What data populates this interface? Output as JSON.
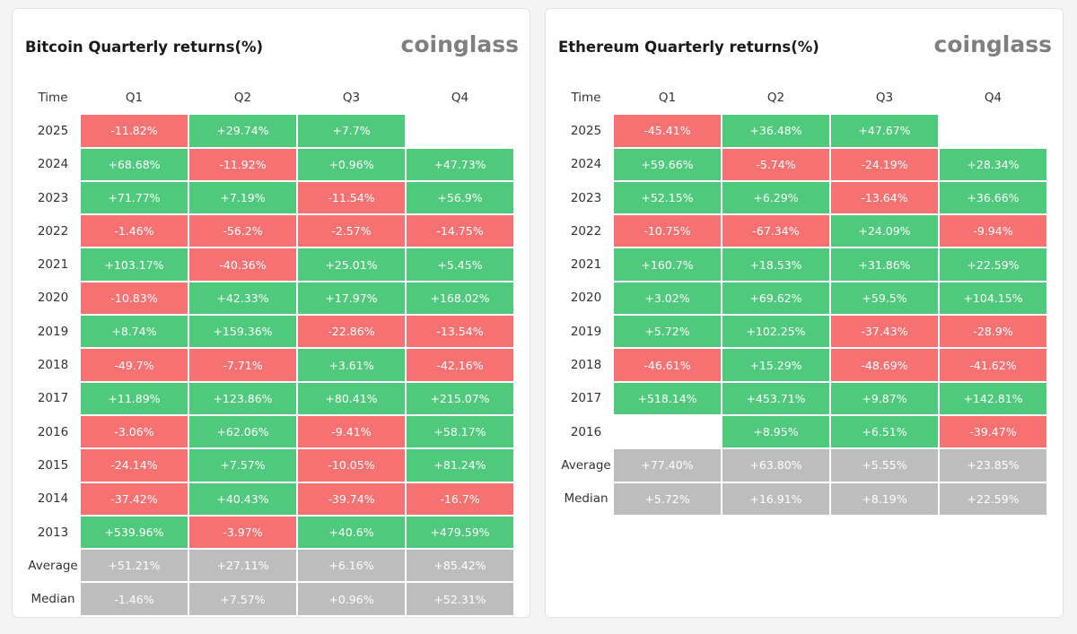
{
  "colors": {
    "positive": "#4fc97c",
    "negative": "#f67172",
    "stat": "#bdbdbd"
  },
  "chart_data": [
    {
      "type": "table",
      "title": "Bitcoin Quarterly returns(%)",
      "brand": "coinglass",
      "headers": [
        "Time",
        "Q1",
        "Q2",
        "Q3",
        "Q4"
      ],
      "rows": [
        {
          "label": "2025",
          "values": [
            "-11.82%",
            "+29.74%",
            "+7.7%",
            ""
          ]
        },
        {
          "label": "2024",
          "values": [
            "+68.68%",
            "-11.92%",
            "+0.96%",
            "+47.73%"
          ]
        },
        {
          "label": "2023",
          "values": [
            "+71.77%",
            "+7.19%",
            "-11.54%",
            "+56.9%"
          ]
        },
        {
          "label": "2022",
          "values": [
            "-1.46%",
            "-56.2%",
            "-2.57%",
            "-14.75%"
          ]
        },
        {
          "label": "2021",
          "values": [
            "+103.17%",
            "-40.36%",
            "+25.01%",
            "+5.45%"
          ]
        },
        {
          "label": "2020",
          "values": [
            "-10.83%",
            "+42.33%",
            "+17.97%",
            "+168.02%"
          ]
        },
        {
          "label": "2019",
          "values": [
            "+8.74%",
            "+159.36%",
            "-22.86%",
            "-13.54%"
          ]
        },
        {
          "label": "2018",
          "values": [
            "-49.7%",
            "-7.71%",
            "+3.61%",
            "-42.16%"
          ]
        },
        {
          "label": "2017",
          "values": [
            "+11.89%",
            "+123.86%",
            "+80.41%",
            "+215.07%"
          ]
        },
        {
          "label": "2016",
          "values": [
            "-3.06%",
            "+62.06%",
            "-9.41%",
            "+58.17%"
          ]
        },
        {
          "label": "2015",
          "values": [
            "-24.14%",
            "+7.57%",
            "-10.05%",
            "+81.24%"
          ]
        },
        {
          "label": "2014",
          "values": [
            "-37.42%",
            "+40.43%",
            "-39.74%",
            "-16.7%"
          ]
        },
        {
          "label": "2013",
          "values": [
            "+539.96%",
            "-3.97%",
            "+40.6%",
            "+479.59%"
          ]
        }
      ],
      "stats": [
        {
          "label": "Average",
          "values": [
            "+51.21%",
            "+27.11%",
            "+6.16%",
            "+85.42%"
          ]
        },
        {
          "label": "Median",
          "values": [
            "-1.46%",
            "+7.57%",
            "+0.96%",
            "+52.31%"
          ]
        }
      ]
    },
    {
      "type": "table",
      "title": "Ethereum Quarterly returns(%)",
      "brand": "coinglass",
      "headers": [
        "Time",
        "Q1",
        "Q2",
        "Q3",
        "Q4"
      ],
      "rows": [
        {
          "label": "2025",
          "values": [
            "-45.41%",
            "+36.48%",
            "+47.67%",
            ""
          ]
        },
        {
          "label": "2024",
          "values": [
            "+59.66%",
            "-5.74%",
            "-24.19%",
            "+28.34%"
          ]
        },
        {
          "label": "2023",
          "values": [
            "+52.15%",
            "+6.29%",
            "-13.64%",
            "+36.66%"
          ]
        },
        {
          "label": "2022",
          "values": [
            "-10.75%",
            "-67.34%",
            "+24.09%",
            "-9.94%"
          ]
        },
        {
          "label": "2021",
          "values": [
            "+160.7%",
            "+18.53%",
            "+31.86%",
            "+22.59%"
          ]
        },
        {
          "label": "2020",
          "values": [
            "+3.02%",
            "+69.62%",
            "+59.5%",
            "+104.15%"
          ]
        },
        {
          "label": "2019",
          "values": [
            "+5.72%",
            "+102.25%",
            "-37.43%",
            "-28.9%"
          ]
        },
        {
          "label": "2018",
          "values": [
            "-46.61%",
            "+15.29%",
            "-48.69%",
            "-41.62%"
          ]
        },
        {
          "label": "2017",
          "values": [
            "+518.14%",
            "+453.71%",
            "+9.87%",
            "+142.81%"
          ]
        },
        {
          "label": "2016",
          "values": [
            "",
            "+8.95%",
            "+6.51%",
            "-39.47%"
          ]
        }
      ],
      "stats": [
        {
          "label": "Average",
          "values": [
            "+77.40%",
            "+63.80%",
            "+5.55%",
            "+23.85%"
          ]
        },
        {
          "label": "Median",
          "values": [
            "+5.72%",
            "+16.91%",
            "+8.19%",
            "+22.59%"
          ]
        }
      ]
    }
  ]
}
